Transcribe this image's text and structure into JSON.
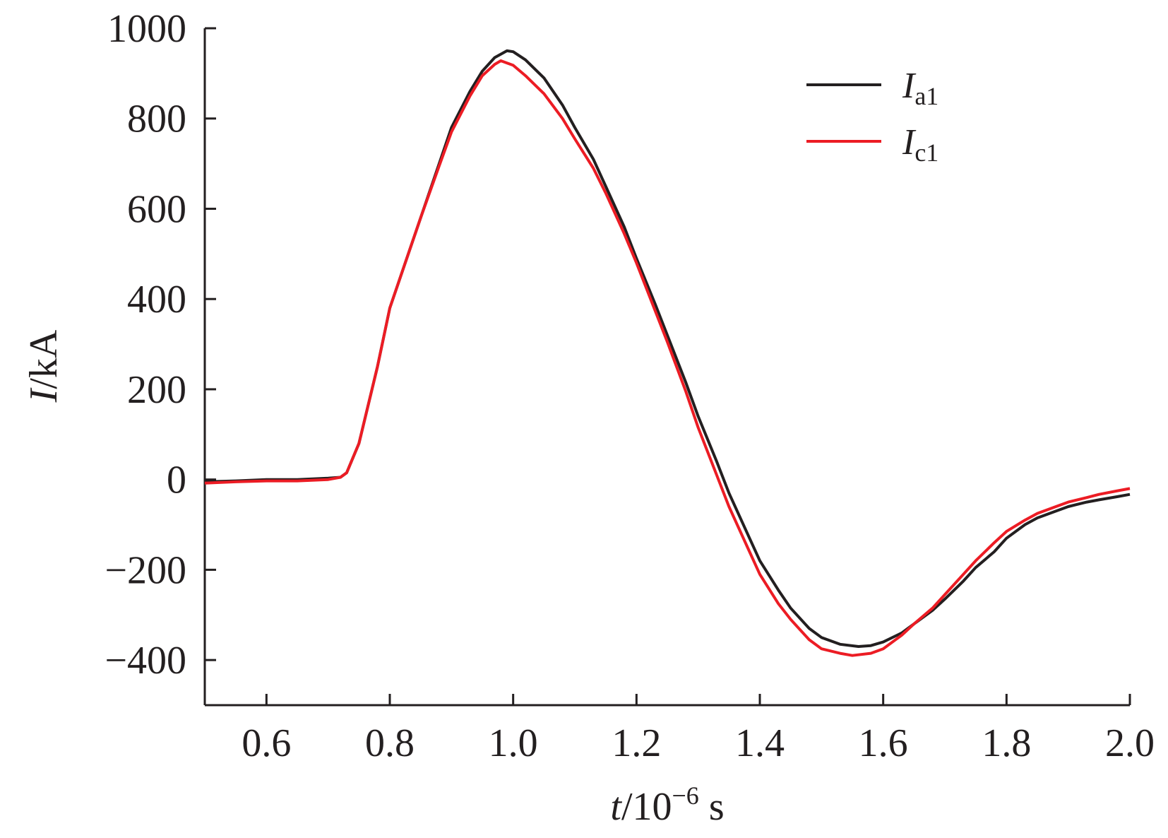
{
  "chart_data": {
    "type": "line",
    "title": "",
    "xlabel": {
      "var": "t",
      "unit_base": "/10",
      "exponent": "−6",
      "unit": " s"
    },
    "ylabel": {
      "var": "I",
      "unit": "/kA"
    },
    "xlim": [
      0.5,
      2.0
    ],
    "ylim": [
      -500,
      1000
    ],
    "xticks": [
      0.6,
      0.8,
      1.0,
      1.2,
      1.4,
      1.6,
      1.8,
      2.0
    ],
    "xtick_labels": [
      "0.6",
      "0.8",
      "1.0",
      "1.2",
      "1.4",
      "1.6",
      "1.8",
      "2.0"
    ],
    "yticks": [
      -400,
      -200,
      0,
      200,
      400,
      600,
      800,
      1000
    ],
    "ytick_labels": [
      "−400",
      "−200",
      "0",
      "200",
      "400",
      "600",
      "800",
      "1000"
    ],
    "grid": false,
    "legend_position": "top-right",
    "series": [
      {
        "name": "a1",
        "legend_var": "I",
        "color": "#231f20",
        "points": [
          [
            0.5,
            -5
          ],
          [
            0.55,
            -3
          ],
          [
            0.6,
            0
          ],
          [
            0.65,
            0
          ],
          [
            0.7,
            3
          ],
          [
            0.72,
            5
          ],
          [
            0.73,
            15
          ],
          [
            0.75,
            80
          ],
          [
            0.78,
            250
          ],
          [
            0.8,
            380
          ],
          [
            0.83,
            500
          ],
          [
            0.85,
            580
          ],
          [
            0.88,
            700
          ],
          [
            0.9,
            780
          ],
          [
            0.93,
            860
          ],
          [
            0.95,
            905
          ],
          [
            0.97,
            935
          ],
          [
            0.99,
            950
          ],
          [
            1.0,
            948
          ],
          [
            1.02,
            930
          ],
          [
            1.05,
            890
          ],
          [
            1.08,
            830
          ],
          [
            1.1,
            780
          ],
          [
            1.13,
            710
          ],
          [
            1.15,
            650
          ],
          [
            1.18,
            560
          ],
          [
            1.2,
            490
          ],
          [
            1.23,
            390
          ],
          [
            1.25,
            320
          ],
          [
            1.28,
            215
          ],
          [
            1.3,
            140
          ],
          [
            1.33,
            40
          ],
          [
            1.35,
            -30
          ],
          [
            1.38,
            -120
          ],
          [
            1.4,
            -180
          ],
          [
            1.43,
            -245
          ],
          [
            1.45,
            -285
          ],
          [
            1.48,
            -330
          ],
          [
            1.5,
            -350
          ],
          [
            1.53,
            -365
          ],
          [
            1.56,
            -370
          ],
          [
            1.58,
            -368
          ],
          [
            1.6,
            -360
          ],
          [
            1.63,
            -340
          ],
          [
            1.65,
            -320
          ],
          [
            1.68,
            -290
          ],
          [
            1.7,
            -265
          ],
          [
            1.73,
            -225
          ],
          [
            1.75,
            -195
          ],
          [
            1.78,
            -160
          ],
          [
            1.8,
            -130
          ],
          [
            1.83,
            -100
          ],
          [
            1.85,
            -85
          ],
          [
            1.88,
            -70
          ],
          [
            1.9,
            -60
          ],
          [
            1.93,
            -50
          ],
          [
            1.95,
            -45
          ],
          [
            1.98,
            -38
          ],
          [
            2.0,
            -33
          ]
        ]
      },
      {
        "name": "c1",
        "legend_var": "I",
        "color": "#ec1c24",
        "points": [
          [
            0.5,
            -8
          ],
          [
            0.55,
            -5
          ],
          [
            0.6,
            -3
          ],
          [
            0.65,
            -3
          ],
          [
            0.7,
            0
          ],
          [
            0.72,
            5
          ],
          [
            0.73,
            15
          ],
          [
            0.75,
            80
          ],
          [
            0.78,
            250
          ],
          [
            0.8,
            380
          ],
          [
            0.83,
            500
          ],
          [
            0.85,
            580
          ],
          [
            0.88,
            695
          ],
          [
            0.9,
            770
          ],
          [
            0.93,
            850
          ],
          [
            0.95,
            895
          ],
          [
            0.97,
            920
          ],
          [
            0.98,
            928
          ],
          [
            1.0,
            918
          ],
          [
            1.02,
            895
          ],
          [
            1.05,
            855
          ],
          [
            1.08,
            800
          ],
          [
            1.1,
            755
          ],
          [
            1.13,
            690
          ],
          [
            1.15,
            635
          ],
          [
            1.18,
            545
          ],
          [
            1.2,
            480
          ],
          [
            1.23,
            375
          ],
          [
            1.25,
            305
          ],
          [
            1.28,
            195
          ],
          [
            1.3,
            115
          ],
          [
            1.33,
            10
          ],
          [
            1.35,
            -60
          ],
          [
            1.38,
            -150
          ],
          [
            1.4,
            -210
          ],
          [
            1.43,
            -275
          ],
          [
            1.45,
            -310
          ],
          [
            1.48,
            -355
          ],
          [
            1.5,
            -375
          ],
          [
            1.53,
            -385
          ],
          [
            1.55,
            -390
          ],
          [
            1.58,
            -385
          ],
          [
            1.6,
            -375
          ],
          [
            1.63,
            -345
          ],
          [
            1.65,
            -320
          ],
          [
            1.68,
            -285
          ],
          [
            1.7,
            -255
          ],
          [
            1.73,
            -210
          ],
          [
            1.75,
            -180
          ],
          [
            1.78,
            -140
          ],
          [
            1.8,
            -115
          ],
          [
            1.83,
            -90
          ],
          [
            1.85,
            -75
          ],
          [
            1.88,
            -60
          ],
          [
            1.9,
            -50
          ],
          [
            1.93,
            -40
          ],
          [
            1.95,
            -33
          ],
          [
            1.98,
            -25
          ],
          [
            2.0,
            -20
          ]
        ]
      }
    ]
  }
}
